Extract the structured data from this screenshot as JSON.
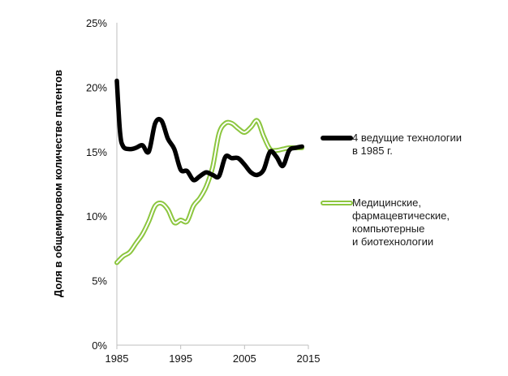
{
  "chart_data": {
    "type": "line",
    "ylabel": "Доля в общемировом количестве патентов",
    "xlabel": "",
    "xlim": [
      1985,
      2015
    ],
    "ylim": [
      0,
      25
    ],
    "x_ticks": [
      "1985",
      "1995",
      "2005",
      "2015"
    ],
    "x_tick_values": [
      1985,
      1995,
      2005,
      2015
    ],
    "y_ticks": [
      "0%",
      "5%",
      "10%",
      "15%",
      "20%",
      "25%"
    ],
    "y_tick_values": [
      0,
      5,
      10,
      15,
      20,
      25
    ],
    "grid": false,
    "legend_position": "right",
    "series": [
      {
        "name_lines": [
          "4 ведущие технологии",
          "в 1985 г."
        ],
        "color": "#000000",
        "style": "thick-solid",
        "points": [
          [
            1985,
            20.5
          ],
          [
            1985.5,
            16.5
          ],
          [
            1986,
            15.4
          ],
          [
            1987,
            15.2
          ],
          [
            1988,
            15.3
          ],
          [
            1989,
            15.5
          ],
          [
            1990,
            15.0
          ],
          [
            1991,
            17.2
          ],
          [
            1992,
            17.4
          ],
          [
            1993,
            16.0
          ],
          [
            1994,
            15.2
          ],
          [
            1995,
            13.6
          ],
          [
            1996,
            13.5
          ],
          [
            1997,
            12.8
          ],
          [
            1998,
            13.1
          ],
          [
            1999,
            13.4
          ],
          [
            2000,
            13.2
          ],
          [
            2001,
            13.1
          ],
          [
            2002,
            14.6
          ],
          [
            2003,
            14.5
          ],
          [
            2004,
            14.5
          ],
          [
            2005,
            14.0
          ],
          [
            2006,
            13.4
          ],
          [
            2007,
            13.2
          ],
          [
            2008,
            13.6
          ],
          [
            2009,
            15.0
          ],
          [
            2010,
            14.6
          ],
          [
            2011,
            13.9
          ],
          [
            2012,
            15.1
          ],
          [
            2013,
            15.3
          ],
          [
            2014,
            15.4
          ]
        ]
      },
      {
        "name_lines": [
          "Медицинские,",
          "фармацевтические,",
          "компьютерные",
          "и биотехнологии"
        ],
        "color": "#8cc63f",
        "style": "outlined",
        "points": [
          [
            1985,
            6.4
          ],
          [
            1986,
            6.9
          ],
          [
            1987,
            7.2
          ],
          [
            1988,
            7.9
          ],
          [
            1989,
            8.6
          ],
          [
            1990,
            9.6
          ],
          [
            1991,
            10.8
          ],
          [
            1992,
            11.0
          ],
          [
            1993,
            10.5
          ],
          [
            1994,
            9.5
          ],
          [
            1995,
            9.7
          ],
          [
            1996,
            9.6
          ],
          [
            1997,
            10.8
          ],
          [
            1998,
            11.4
          ],
          [
            1999,
            12.3
          ],
          [
            2000,
            13.8
          ],
          [
            2001,
            16.4
          ],
          [
            2002,
            17.2
          ],
          [
            2003,
            17.2
          ],
          [
            2004,
            16.8
          ],
          [
            2005,
            16.5
          ],
          [
            2006,
            16.9
          ],
          [
            2007,
            17.4
          ],
          [
            2008,
            16.2
          ],
          [
            2009,
            15.2
          ],
          [
            2010,
            15.1
          ],
          [
            2011,
            15.2
          ],
          [
            2012,
            15.3
          ],
          [
            2013,
            15.3
          ],
          [
            2014,
            15.3
          ]
        ]
      }
    ]
  }
}
